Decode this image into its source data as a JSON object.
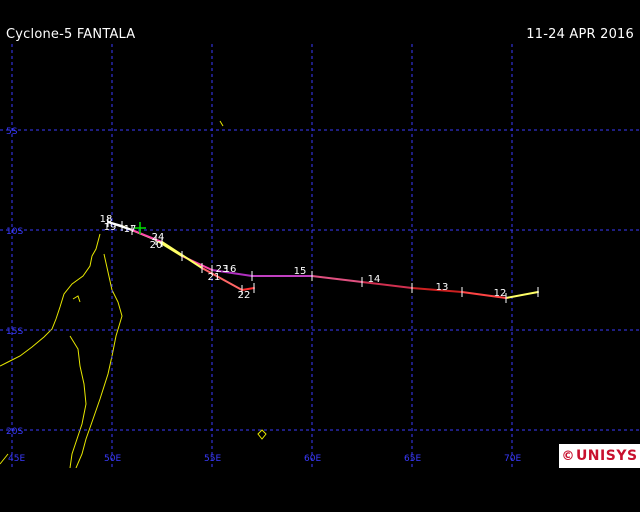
{
  "header": {
    "title": "Cyclone-5 FANTALA",
    "dates": "11-24 APR 2016"
  },
  "map": {
    "lat_labels": [
      "5S",
      "10S",
      "15S",
      "20S"
    ],
    "lon_labels": [
      "45E",
      "50E",
      "55E",
      "60E",
      "65E",
      "70E"
    ],
    "grid_color": "#3a3aff",
    "coast_color": "#e8e800",
    "track_points": [
      {
        "lon": 71.3,
        "lat": -13.1
      },
      {
        "lon": 69.7,
        "lat": -13.4
      },
      {
        "lon": 67.5,
        "lat": -13.1
      },
      {
        "lon": 65.0,
        "lat": -12.9
      },
      {
        "lon": 62.5,
        "lat": -12.6
      },
      {
        "lon": 60.0,
        "lat": -12.3
      },
      {
        "lon": 57.0,
        "lat": -12.3
      },
      {
        "lon": 55.0,
        "lat": -12.0
      },
      {
        "lon": 53.5,
        "lat": -11.3
      },
      {
        "lon": 52.2,
        "lat": -10.5
      },
      {
        "lon": 50.5,
        "lat": -9.8
      },
      {
        "lon": 49.8,
        "lat": -9.6
      },
      {
        "lon": 51.0,
        "lat": -10.0
      },
      {
        "lon": 52.5,
        "lat": -10.6
      },
      {
        "lon": 54.5,
        "lat": -11.9
      },
      {
        "lon": 56.5,
        "lat": -13.0
      },
      {
        "lon": 57.1,
        "lat": -12.9
      }
    ],
    "day_labels": [
      {
        "text": "12",
        "lon": 69.4,
        "lat": -13.3
      },
      {
        "text": "13",
        "lon": 66.5,
        "lat": -13.0
      },
      {
        "text": "14",
        "lon": 63.1,
        "lat": -12.6
      },
      {
        "text": "15",
        "lon": 59.4,
        "lat": -12.2
      },
      {
        "text": "16",
        "lon": 55.9,
        "lat": -12.1
      },
      {
        "text": "18",
        "lon": 49.7,
        "lat": -9.6
      },
      {
        "text": "19",
        "lon": 49.9,
        "lat": -10.0
      },
      {
        "text": "17",
        "lon": 50.9,
        "lat": -10.1
      },
      {
        "text": "24",
        "lon": 52.3,
        "lat": -10.5
      },
      {
        "text": "20",
        "lon": 52.2,
        "lat": -10.9
      },
      {
        "text": "23",
        "lon": 55.5,
        "lat": -12.1
      },
      {
        "text": "21",
        "lon": 55.1,
        "lat": -12.5
      },
      {
        "text": "22",
        "lon": 56.6,
        "lat": -13.4
      }
    ],
    "start_marker": {
      "lon": 51.4,
      "lat": -9.9,
      "color": "#00e000"
    }
  },
  "branding": {
    "copyright": "©",
    "logo_text": "UNISYS",
    "logo_color": "#c8102e"
  }
}
